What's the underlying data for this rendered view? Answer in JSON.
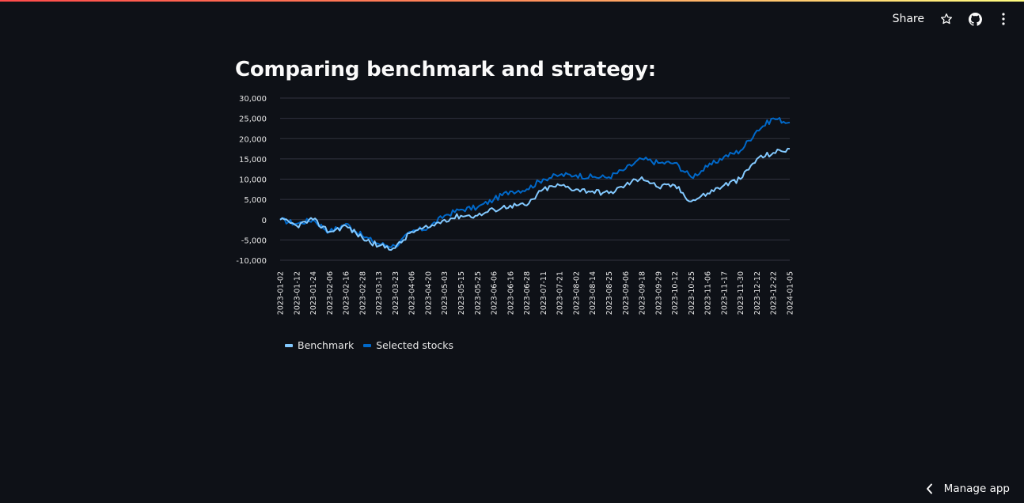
{
  "header": {
    "share_label": "Share",
    "icons": [
      "star-icon",
      "github-icon",
      "kebab-menu-icon"
    ]
  },
  "page": {
    "title": "Comparing benchmark and strategy:"
  },
  "footer": {
    "manage_label": "Manage app",
    "icon": "chevron-left-icon"
  },
  "colors": {
    "background": "#0e1117",
    "benchmark": "#83c9ff",
    "selected": "#0068c9",
    "grid": "#31333f"
  },
  "chart_data": {
    "type": "line",
    "title": "",
    "xlabel": "",
    "ylabel": "",
    "ylim": [
      -10000,
      30000
    ],
    "y_ticks": [
      30000,
      25000,
      20000,
      15000,
      10000,
      5000,
      0,
      -5000,
      -10000
    ],
    "y_tick_labels": [
      "30,000",
      "25,000",
      "20,000",
      "15,000",
      "10,000",
      "5,000",
      "0",
      "-5,000",
      "-10,000"
    ],
    "x_tick_labels": [
      "2023-01-02",
      "2023-01-12",
      "2023-01-24",
      "2023-02-06",
      "2023-02-16",
      "2023-02-28",
      "2023-03-13",
      "2023-03-23",
      "2023-04-06",
      "2023-04-20",
      "2023-05-03",
      "2023-05-15",
      "2023-05-25",
      "2023-06-06",
      "2023-06-16",
      "2023-06-28",
      "2023-07-11",
      "2023-07-21",
      "2023-08-02",
      "2023-08-14",
      "2023-08-25",
      "2023-09-06",
      "2023-09-18",
      "2023-09-29",
      "2023-10-12",
      "2023-10-25",
      "2023-11-06",
      "2023-11-17",
      "2023-11-30",
      "2023-12-12",
      "2023-12-22",
      "2024-01-05"
    ],
    "legend_position": "bottom-left",
    "grid": true,
    "x": [
      "2023-01-02",
      "2023-01-12",
      "2023-01-24",
      "2023-02-06",
      "2023-02-16",
      "2023-02-28",
      "2023-03-13",
      "2023-03-23",
      "2023-04-06",
      "2023-04-20",
      "2023-05-03",
      "2023-05-15",
      "2023-05-25",
      "2023-06-06",
      "2023-06-16",
      "2023-06-28",
      "2023-07-11",
      "2023-07-21",
      "2023-08-02",
      "2023-08-14",
      "2023-08-25",
      "2023-09-06",
      "2023-09-18",
      "2023-09-29",
      "2023-10-12",
      "2023-10-25",
      "2023-11-06",
      "2023-11-17",
      "2023-11-30",
      "2023-12-12",
      "2023-12-22",
      "2024-01-05"
    ],
    "series": [
      {
        "name": "Benchmark",
        "color": "#83c9ff",
        "values": [
          0,
          -1500,
          0,
          -3000,
          -1500,
          -4500,
          -6500,
          -7000,
          -3000,
          -2000,
          0,
          1000,
          1000,
          2500,
          3500,
          3500,
          7500,
          8500,
          7500,
          7000,
          6500,
          8500,
          10500,
          8000,
          8500,
          4500,
          6500,
          8500,
          10000,
          15000,
          16500,
          17500
        ]
      },
      {
        "name": "Selected stocks",
        "color": "#0068c9",
        "values": [
          0,
          -1000,
          0,
          -3000,
          -1000,
          -4000,
          -6000,
          -6500,
          -3000,
          -2000,
          1000,
          2500,
          3000,
          5000,
          7000,
          7500,
          10000,
          11000,
          11000,
          10500,
          10500,
          12500,
          15000,
          14000,
          14000,
          10500,
          13000,
          15500,
          17000,
          22000,
          25000,
          24000
        ]
      }
    ]
  }
}
